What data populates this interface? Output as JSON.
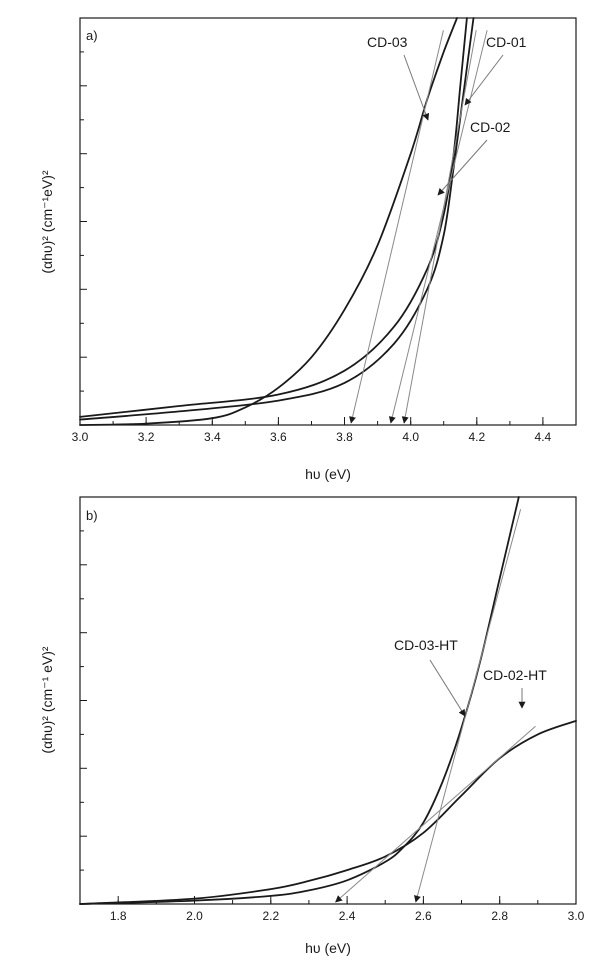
{
  "chart_data": [
    {
      "type": "line",
      "panel_label": "a)",
      "xlabel": "hυ (eV)",
      "ylabel": "(αhυ)² (cm⁻¹eV)²",
      "xlim": [
        3.0,
        4.5
      ],
      "ylim": [
        0,
        6
      ],
      "x_ticks": [
        3.0,
        3.2,
        3.4,
        3.6,
        3.8,
        4.0,
        4.2,
        4.4
      ],
      "x_tick_labels": [
        "3.0",
        "3.2",
        "3.4",
        "3.6",
        "3.8",
        "4.0",
        "4.2",
        "4.4"
      ],
      "y_tick_labels_shown": false,
      "series": [
        {
          "name": "CD-01",
          "x": [
            3.0,
            3.3,
            3.6,
            3.8,
            3.95,
            4.05,
            4.1,
            4.13,
            4.16,
            4.19
          ],
          "y": [
            0.08,
            0.2,
            0.36,
            0.62,
            1.2,
            2.0,
            2.8,
            3.8,
            4.9,
            6.0
          ]
        },
        {
          "name": "CD-02",
          "x": [
            3.0,
            3.3,
            3.6,
            3.8,
            3.95,
            4.05,
            4.1,
            4.13,
            4.15,
            4.17
          ],
          "y": [
            0.12,
            0.28,
            0.45,
            0.8,
            1.45,
            2.3,
            3.1,
            4.0,
            5.0,
            6.0
          ]
        },
        {
          "name": "CD-03",
          "x": [
            3.0,
            3.2,
            3.4,
            3.5,
            3.6,
            3.7,
            3.8,
            3.9,
            4.0,
            4.05,
            4.1,
            4.14
          ],
          "y": [
            0.0,
            0.02,
            0.1,
            0.26,
            0.55,
            1.0,
            1.7,
            2.65,
            4.0,
            4.8,
            5.5,
            6.0
          ]
        }
      ],
      "extrapolations": [
        {
          "series": "CD-03",
          "intercept_x": 3.82
        },
        {
          "series": "CD-01",
          "intercept_x": 3.94
        },
        {
          "series": "CD-02",
          "intercept_x": 3.98
        }
      ],
      "annotations": [
        "CD-03",
        "CD-01",
        "CD-02"
      ]
    },
    {
      "type": "line",
      "panel_label": "b)",
      "xlabel": "hυ (eV)",
      "ylabel": "(αhυ)² (cm⁻¹ eV)²",
      "xlim": [
        1.7,
        3.0
      ],
      "ylim": [
        0,
        6
      ],
      "x_ticks": [
        1.8,
        2.0,
        2.2,
        2.4,
        2.6,
        2.8,
        3.0
      ],
      "x_tick_labels": [
        "1.8",
        "2.0",
        "2.2",
        "2.4",
        "2.6",
        "2.8",
        "3.0"
      ],
      "y_tick_labels_shown": false,
      "series": [
        {
          "name": "CD-03-HT",
          "x": [
            1.7,
            2.0,
            2.2,
            2.3,
            2.4,
            2.5,
            2.55,
            2.6,
            2.65,
            2.7,
            2.75,
            2.8,
            2.85
          ],
          "y": [
            0.0,
            0.05,
            0.12,
            0.2,
            0.35,
            0.62,
            0.85,
            1.2,
            1.8,
            2.6,
            3.6,
            4.8,
            6.0
          ]
        },
        {
          "name": "CD-02-HT",
          "x": [
            1.7,
            2.0,
            2.2,
            2.3,
            2.4,
            2.5,
            2.6,
            2.7,
            2.8,
            2.9,
            3.0
          ],
          "y": [
            0.0,
            0.08,
            0.22,
            0.34,
            0.5,
            0.7,
            1.05,
            1.6,
            2.15,
            2.5,
            2.7
          ]
        }
      ],
      "extrapolations": [
        {
          "series": "CD-02-HT",
          "intercept_x": 2.37
        },
        {
          "series": "CD-03-HT",
          "intercept_x": 2.58
        }
      ],
      "annotations": [
        "CD-03-HT",
        "CD-02-HT"
      ]
    }
  ]
}
